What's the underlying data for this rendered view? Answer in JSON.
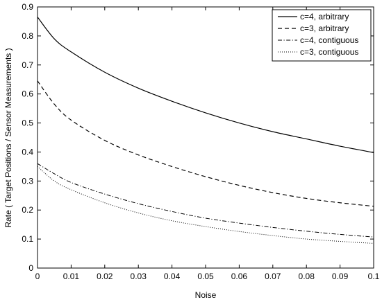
{
  "chart_data": {
    "type": "line",
    "title": "",
    "xlabel": "Noise",
    "ylabel": "Rate ( Target Positions / Sensor Measurements )",
    "xlim": [
      0,
      0.1
    ],
    "ylim": [
      0,
      0.9
    ],
    "xticks": [
      0,
      0.01,
      0.02,
      0.03,
      0.04,
      0.05,
      0.06,
      0.07,
      0.08,
      0.09,
      0.1
    ],
    "xtick_labels": [
      "0",
      "0.01",
      "0.02",
      "0.03",
      "0.04",
      "0.05",
      "0.06",
      "0.07",
      "0.08",
      "0.09",
      "0.1"
    ],
    "yticks": [
      0,
      0.1,
      0.2,
      0.3,
      0.4,
      0.5,
      0.6,
      0.7,
      0.8,
      0.9
    ],
    "ytick_labels": [
      "0",
      "0.1",
      "0.2",
      "0.3",
      "0.4",
      "0.5",
      "0.6",
      "0.7",
      "0.8",
      "0.9"
    ],
    "grid": false,
    "legend_position": "top-right",
    "x": [
      0,
      0.005,
      0.01,
      0.02,
      0.03,
      0.04,
      0.05,
      0.06,
      0.07,
      0.08,
      0.09,
      0.1
    ],
    "series": [
      {
        "name": "c=4, arbitrary",
        "style": "solid",
        "color": "#000000",
        "values": [
          0.865,
          0.79,
          0.745,
          0.675,
          0.62,
          0.575,
          0.535,
          0.5,
          0.47,
          0.445,
          0.42,
          0.398
        ]
      },
      {
        "name": "c=3, arbitrary",
        "style": "dashed",
        "color": "#000000",
        "values": [
          0.645,
          0.565,
          0.51,
          0.44,
          0.39,
          0.35,
          0.315,
          0.285,
          0.26,
          0.24,
          0.225,
          0.213
        ]
      },
      {
        "name": "c=4, contiguous",
        "style": "dashdot",
        "color": "#000000",
        "values": [
          0.36,
          0.325,
          0.295,
          0.255,
          0.222,
          0.195,
          0.172,
          0.155,
          0.14,
          0.127,
          0.116,
          0.107
        ]
      },
      {
        "name": "c=3, contiguous",
        "style": "dotted",
        "color": "#000000",
        "values": [
          0.35,
          0.3,
          0.27,
          0.225,
          0.19,
          0.163,
          0.143,
          0.126,
          0.112,
          0.1,
          0.092,
          0.085
        ]
      }
    ]
  }
}
